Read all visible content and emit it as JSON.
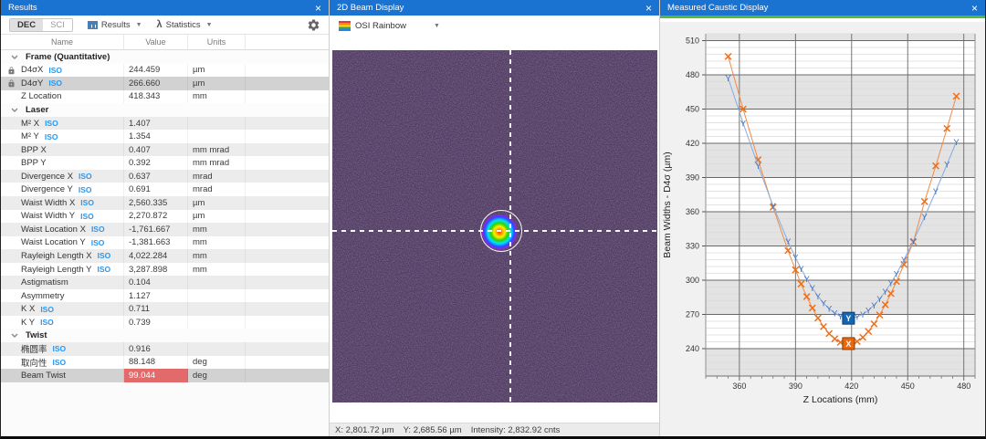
{
  "results_panel": {
    "title": "Results",
    "close_label": "×",
    "tabs": {
      "dec": "DEC",
      "sci": "SCI"
    },
    "results_menu": "Results",
    "statistics_menu": "Statistics",
    "iso_label": "ISO",
    "columns": {
      "name": "Name",
      "value": "Value",
      "units": "Units"
    },
    "sections": [
      {
        "name": "Frame (Quantitative)",
        "rows": [
          {
            "name": "D4σX",
            "iso": true,
            "lock": true,
            "value": "244.459",
            "units": "µm"
          },
          {
            "name": "D4σY",
            "iso": true,
            "lock": true,
            "value": "266.660",
            "units": "µm",
            "selected": true
          },
          {
            "name": "Z Location",
            "value": "418.343",
            "units": "mm"
          }
        ]
      },
      {
        "name": "Laser",
        "rows": [
          {
            "name": "M² X",
            "iso": true,
            "value": "1.407",
            "units": ""
          },
          {
            "name": "M² Y",
            "iso": true,
            "value": "1.354",
            "units": ""
          },
          {
            "name": "BPP X",
            "value": "0.407",
            "units": "mm mrad"
          },
          {
            "name": "BPP Y",
            "value": "0.392",
            "units": "mm mrad"
          },
          {
            "name": "Divergence X",
            "iso": true,
            "value": "0.637",
            "units": "mrad"
          },
          {
            "name": "Divergence Y",
            "iso": true,
            "value": "0.691",
            "units": "mrad"
          },
          {
            "name": "Waist Width X",
            "iso": true,
            "value": "2,560.335",
            "units": "µm"
          },
          {
            "name": "Waist Width Y",
            "iso": true,
            "value": "2,270.872",
            "units": "µm"
          },
          {
            "name": "Waist Location X",
            "iso": true,
            "value": "-1,761.667",
            "units": "mm"
          },
          {
            "name": "Waist Location Y",
            "iso": true,
            "value": "-1,381.663",
            "units": "mm"
          },
          {
            "name": "Rayleigh Length X",
            "iso": true,
            "value": "4,022.284",
            "units": "mm"
          },
          {
            "name": "Rayleigh Length Y",
            "iso": true,
            "value": "3,287.898",
            "units": "mm"
          },
          {
            "name": "Astigmatism",
            "value": "0.104",
            "units": ""
          },
          {
            "name": "Asymmetry",
            "value": "1.127",
            "units": ""
          },
          {
            "name": "K X",
            "iso": true,
            "value": "0.711",
            "units": ""
          },
          {
            "name": "K Y",
            "iso": true,
            "value": "0.739",
            "units": ""
          }
        ]
      },
      {
        "name": "Twist",
        "rows": [
          {
            "name": "椭圆率",
            "iso": true,
            "value": "0.916",
            "units": ""
          },
          {
            "name": "取向性",
            "iso": true,
            "value": "88.148",
            "units": "deg"
          },
          {
            "name": "Beam Twist",
            "value": "99.044",
            "units": "deg",
            "selected": true,
            "alert": true
          }
        ]
      }
    ]
  },
  "beam_panel": {
    "title": "2D Beam Display",
    "close_label": "×",
    "colormap": "OSI Rainbow",
    "status": [
      "X: 2,801.72 µm",
      "Y: 2,685.56 µm",
      "Intensity: 2,832.92 cnts"
    ]
  },
  "caustic_panel": {
    "title": "Measured Caustic Display",
    "close_label": "×"
  },
  "chart_data": {
    "type": "line",
    "xlabel": "Z Locations (mm)",
    "ylabel": "Beam Widths - D4σ (µm)",
    "xlim": [
      342,
      486
    ],
    "ylim": [
      216,
      516
    ],
    "xticks": [
      360,
      390,
      420,
      450,
      480
    ],
    "yticks": [
      240,
      270,
      300,
      330,
      360,
      390,
      420,
      450,
      480,
      510
    ],
    "minor_step_y": 6,
    "minor_step_x": 6,
    "band_color": "#e3e3e3",
    "x": [
      354,
      362,
      370,
      378,
      386,
      390,
      393,
      396,
      399,
      402,
      405,
      408,
      411,
      414,
      417,
      420,
      423,
      426,
      429,
      432,
      435,
      438,
      441,
      444,
      448,
      453,
      459,
      465,
      471,
      476
    ],
    "series": [
      {
        "name": "X",
        "marker": "x",
        "color": "#e8701d",
        "line_color": "#f08a45",
        "values": [
          496.1,
          450.0,
          405.6,
          364.0,
          326.0,
          309.0,
          296.7,
          285.6,
          275.7,
          266.8,
          259.3,
          253.2,
          248.6,
          245.5,
          244.1,
          244.4,
          246.3,
          249.9,
          255.1,
          261.7,
          269.5,
          278.5,
          288.3,
          298.9,
          313.8,
          333.5,
          369.0,
          400.2,
          433.0,
          461.3
        ]
      },
      {
        "name": "Y",
        "marker": "Y",
        "color": "#3d6fc0",
        "line_color": "#8aabdd",
        "values": [
          477.2,
          437.7,
          400.2,
          365.3,
          333.9,
          319.8,
          310.1,
          301.2,
          293.2,
          286.0,
          280.0,
          275.0,
          271.1,
          268.4,
          266.9,
          266.7,
          267.8,
          270.1,
          273.5,
          278.1,
          283.6,
          290.1,
          297.4,
          305.6,
          317.8,
          334.4,
          355.4,
          377.9,
          401.5,
          421.3
        ]
      }
    ],
    "current_markers": [
      {
        "series": "X",
        "label": "X",
        "z": 418.343,
        "value": 244.459,
        "fill": "#e8680e",
        "stroke": "#8a3c00"
      },
      {
        "series": "Y",
        "label": "Y",
        "z": 418.343,
        "value": 266.66,
        "fill": "#1565b0",
        "stroke": "#0d3c6e"
      }
    ]
  }
}
